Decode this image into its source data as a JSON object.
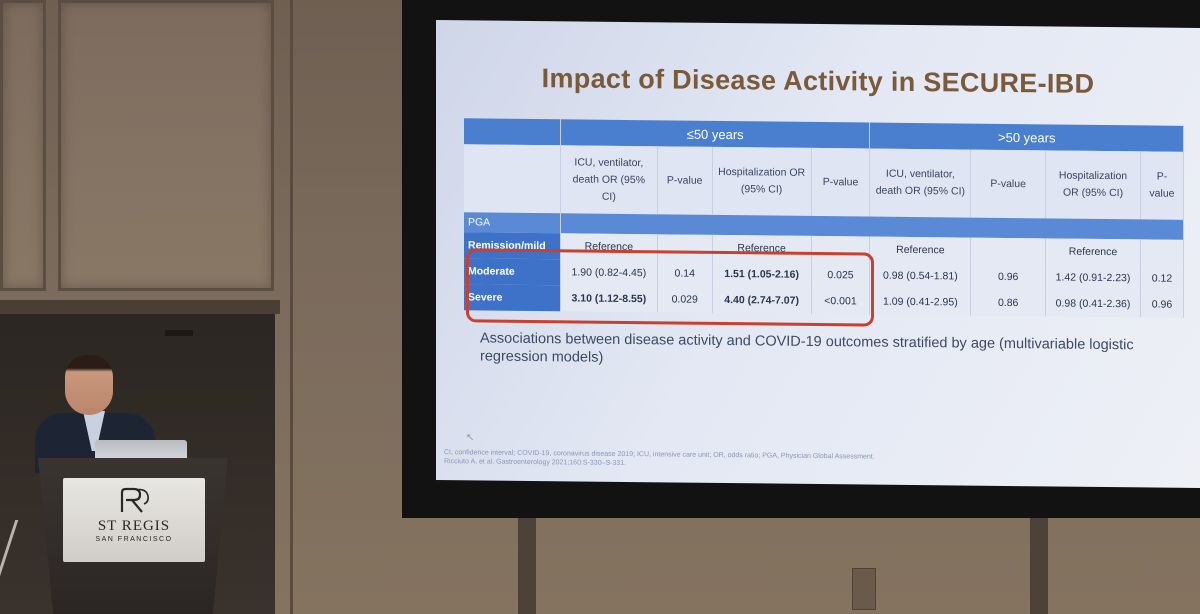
{
  "slide": {
    "title": "Impact of Disease Activity in SECURE-IBD",
    "group_le50": "≤50 years",
    "group_gt50": ">50 years",
    "col_icu": "ICU, ventilator, death OR (95% CI)",
    "col_p": "P-value",
    "col_hosp": "Hospitalization OR (95% CI)",
    "col_p_short": "P-value",
    "pga_label": "PGA",
    "rows": [
      {
        "label": "Remission/mild",
        "icu_le50": "Reference",
        "p1": "",
        "hosp_le50": "Reference",
        "p2": "",
        "icu_gt50": "Reference",
        "p3": "",
        "hosp_gt50": "Reference",
        "p4": ""
      },
      {
        "label": "Moderate",
        "icu_le50": "1.90 (0.82-4.45)",
        "p1": "0.14",
        "hosp_le50": "1.51 (1.05-2.16)",
        "p2": "0.025",
        "icu_gt50": "0.98 (0.54-1.81)",
        "p3": "0.96",
        "hosp_gt50": "1.42 (0.91-2.23)",
        "p4": "0.12"
      },
      {
        "label": "Severe",
        "icu_le50": "3.10 (1.12-8.55)",
        "p1": "0.029",
        "hosp_le50": "4.40 (2.74-7.07)",
        "p2": "<0.001",
        "icu_gt50": "1.09 (0.41-2.95)",
        "p3": "0.86",
        "hosp_gt50": "0.98 (0.41-2.36)",
        "p4": "0.96"
      }
    ],
    "caption": "Associations between disease activity and COVID-19 outcomes stratified by age (multivariable logistic regression models)",
    "footnote_1": "CI, confidence interval; COVID-19, coronavirus disease 2019; ICU, intensive care unit; OR, odds ratio; PGA, Physician Global Assessment.",
    "footnote_2": "Ricciuto A, et al. Gastroenterology 2021;160:S-330–S-331."
  },
  "venue": {
    "brand": "ST REGIS",
    "city": "SAN FRANCISCO"
  },
  "colors": {
    "table_header": "#4a7fd0",
    "highlight_box": "#c9402e",
    "title": "#7a5a3a"
  }
}
